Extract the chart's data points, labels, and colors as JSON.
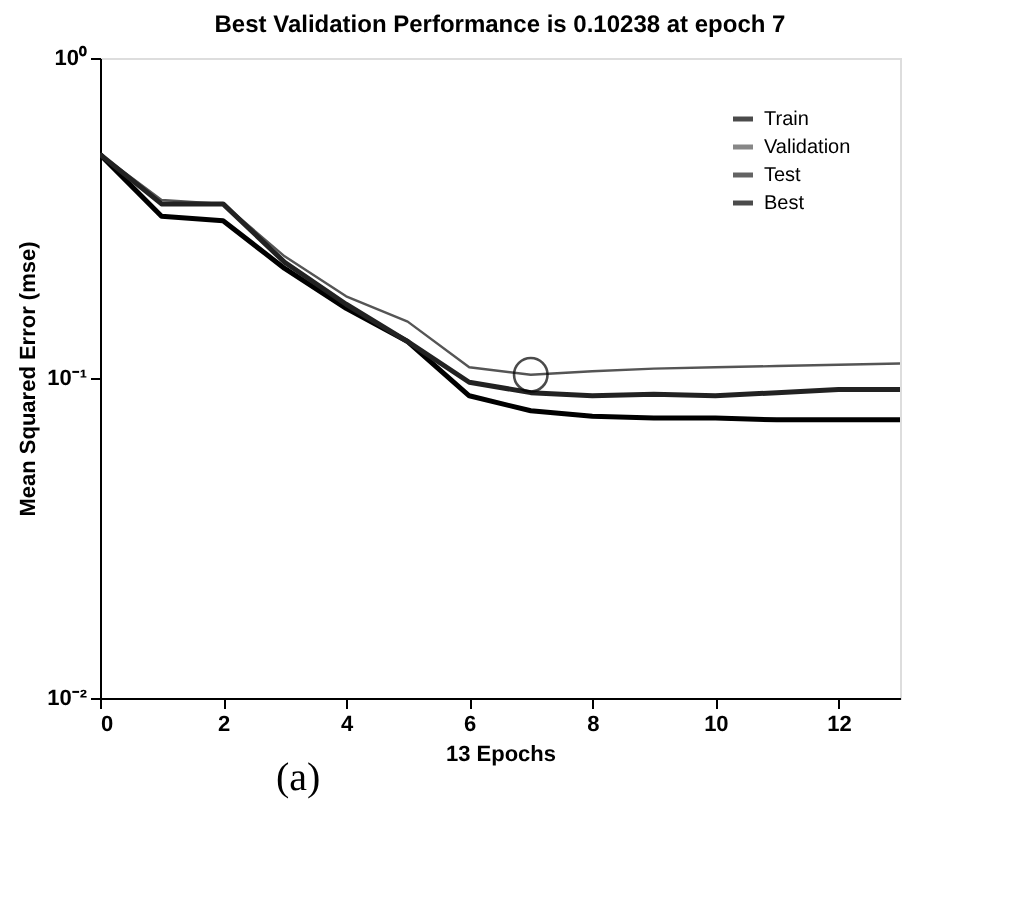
{
  "chart_data": {
    "type": "line",
    "title": "Best Validation Performance is 0.10238 at epoch 7",
    "xlabel": "13 Epochs",
    "ylabel": "Mean Squared Error  (mse)",
    "x": [
      0,
      1,
      2,
      3,
      4,
      5,
      6,
      7,
      8,
      9,
      10,
      11,
      12,
      13
    ],
    "series": [
      {
        "name": "Train",
        "color": "#000000",
        "values": [
          0.5,
          0.32,
          0.31,
          0.22,
          0.165,
          0.13,
          0.088,
          0.079,
          0.076,
          0.075,
          0.075,
          0.074,
          0.074,
          0.074
        ]
      },
      {
        "name": "Validation",
        "color": "#555555",
        "values": [
          0.5,
          0.36,
          0.35,
          0.24,
          0.18,
          0.15,
          0.108,
          0.1024,
          0.105,
          0.107,
          0.108,
          0.109,
          0.11,
          0.111
        ]
      },
      {
        "name": "Test",
        "color": "#222222",
        "values": [
          0.5,
          0.35,
          0.35,
          0.23,
          0.17,
          0.13,
          0.097,
          0.09,
          0.088,
          0.089,
          0.088,
          0.09,
          0.092,
          0.092
        ]
      },
      {
        "name": "Best",
        "type": "scatter",
        "marker": "circle",
        "color": "#000000",
        "x": [
          7
        ],
        "values": [
          0.1024
        ]
      }
    ],
    "xlim": [
      0,
      13
    ],
    "xticks": [
      0,
      2,
      4,
      6,
      8,
      10,
      12
    ],
    "ylim": [
      0.01,
      1
    ],
    "yticks": [
      {
        "value": 1,
        "label": "10⁰"
      },
      {
        "value": 0.1,
        "label": "10⁻¹"
      },
      {
        "value": 0.01,
        "label": "10⁻²"
      }
    ],
    "log": "y",
    "grid": false,
    "legend": "top right",
    "marker": "none",
    "line_style": "solid",
    "annotations": [
      "(a)"
    ]
  }
}
